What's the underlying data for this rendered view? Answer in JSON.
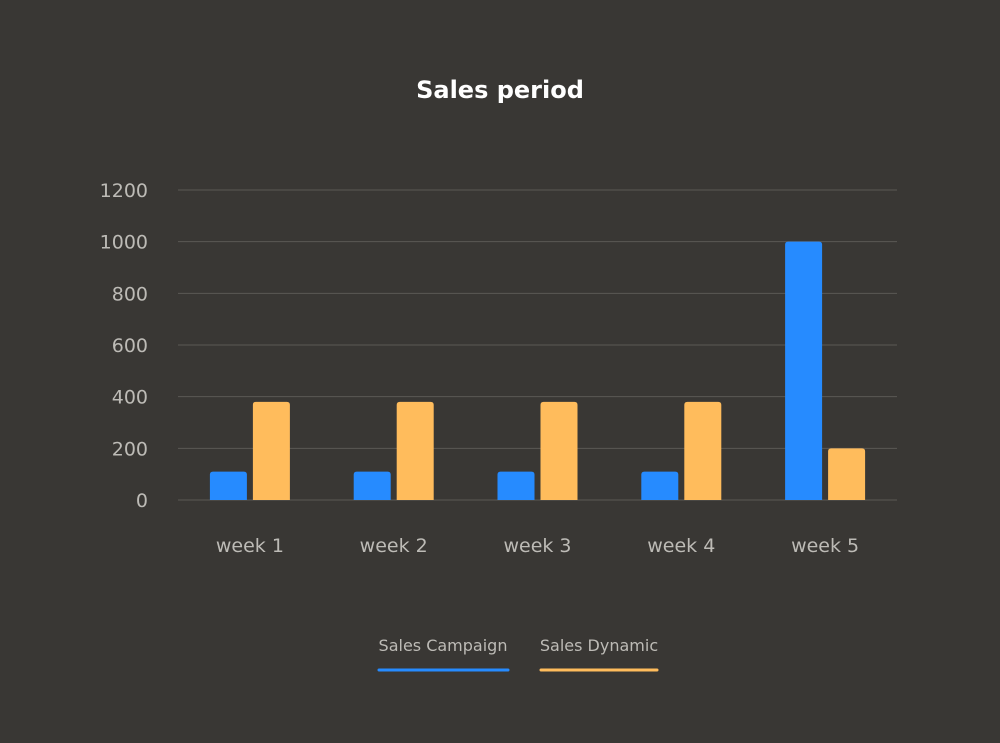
{
  "chart_data": {
    "type": "bar",
    "title": "Sales period",
    "xlabel": "",
    "ylabel": "",
    "categories": [
      "week 1",
      "week 2",
      "week 3",
      "week 4",
      "week 5"
    ],
    "series": [
      {
        "name": "Sales Campaign",
        "color": "#268bff",
        "values": [
          110,
          110,
          110,
          110,
          1000
        ]
      },
      {
        "name": "Sales Dynamic",
        "color": "#ffbc5c",
        "values": [
          380,
          380,
          380,
          380,
          200
        ]
      }
    ],
    "ylim": [
      0,
      1200
    ],
    "yticks": [
      0,
      200,
      400,
      600,
      800,
      1000,
      1200
    ],
    "grid": true,
    "legend_position": "bottom"
  }
}
